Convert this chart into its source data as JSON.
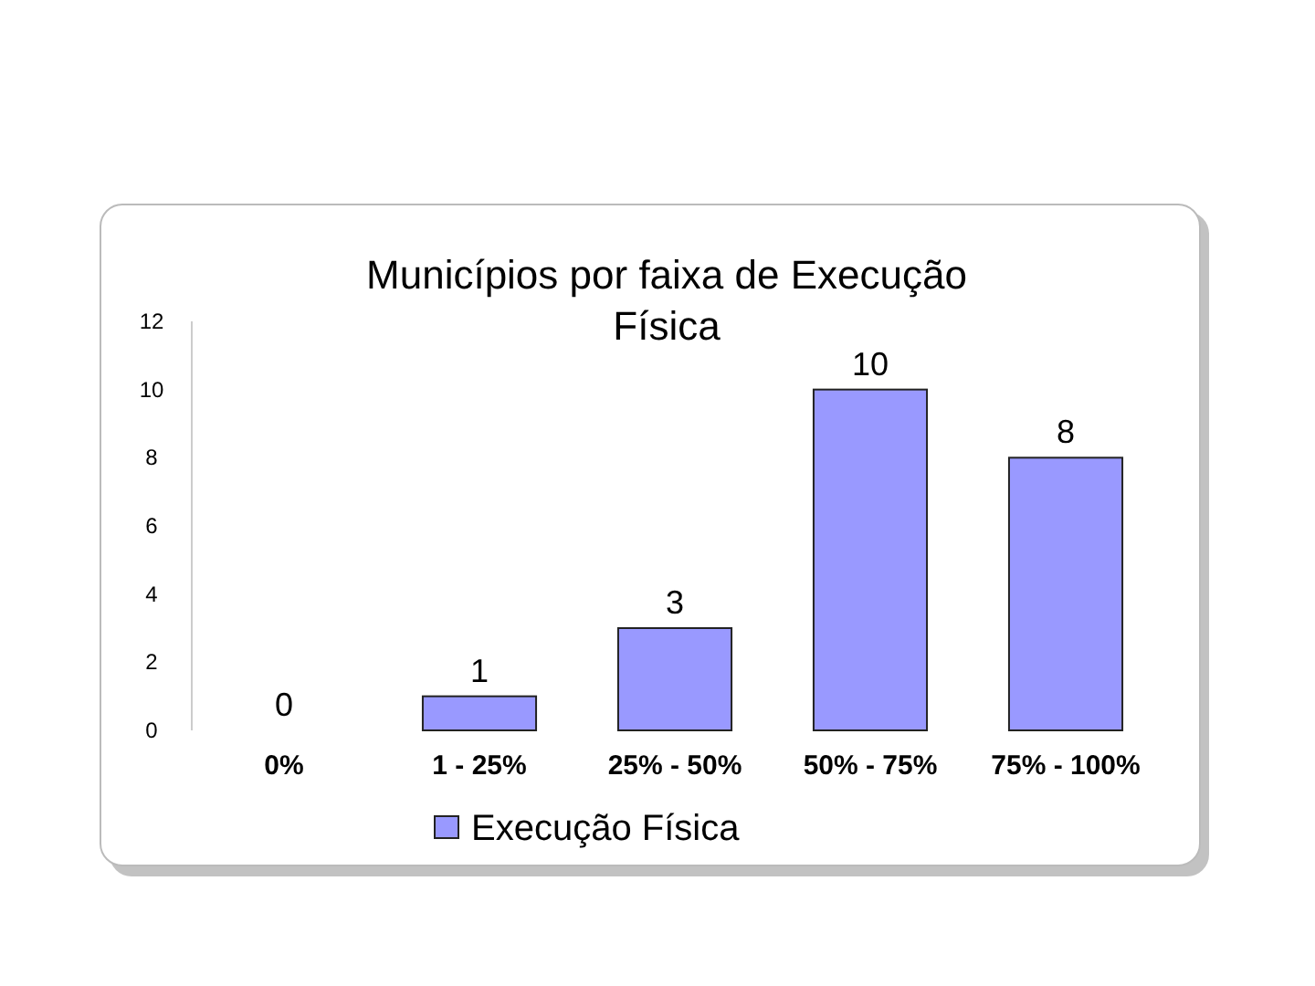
{
  "chart_data": {
    "type": "bar",
    "title": "Municípios por faixa de Execução Física",
    "categories": [
      "0%",
      "1 - 25%",
      "25% - 50%",
      "50% - 75%",
      "75% - 100%"
    ],
    "series": [
      {
        "name": "Execução Física",
        "color": "#9999ff",
        "values": [
          0,
          1,
          3,
          10,
          8
        ]
      }
    ],
    "ylim": [
      0,
      12
    ],
    "yticks": [
      0,
      2,
      4,
      6,
      8,
      10,
      12
    ],
    "grid": false,
    "legend": "bottom",
    "data_labels": true
  }
}
